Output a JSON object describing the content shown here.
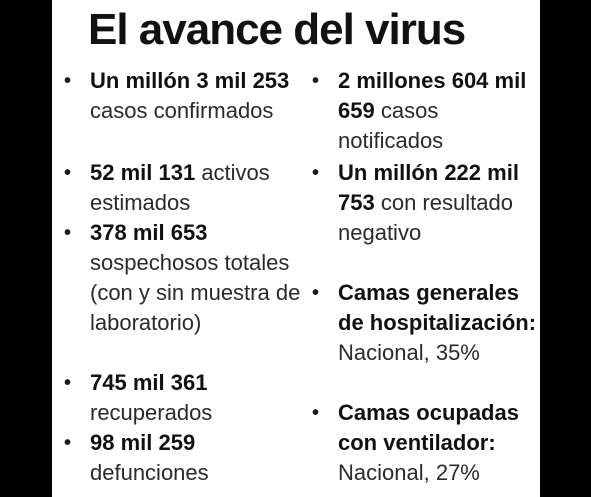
{
  "title": "El avance del virus",
  "bullet_char": "•",
  "left_items": [
    {
      "bold": "Un millón 3 mil 253",
      "text": "casos confirmados"
    },
    {
      "bold": "52 mil 131",
      "text": "activos estimados"
    },
    {
      "bold": "378 mil 653",
      "text": "sospechosos totales (con y sin muestra de laboratorio)"
    },
    {
      "bold": "745 mil 361",
      "text": "recuperados"
    },
    {
      "bold": "98 mil 259",
      "text": "defunciones"
    }
  ],
  "right_items": [
    {
      "bold": "2 millones 604 mil 659",
      "text": "casos notificados"
    },
    {
      "bold": "Un millón 222 mil 753",
      "text": "con resultado negativo"
    },
    {
      "bold": "Camas generales de hospitalización:",
      "text": "Nacional, 35%"
    },
    {
      "bold": "Camas ocupadas con ventilador:",
      "text": "Nacional, 27%"
    }
  ]
}
